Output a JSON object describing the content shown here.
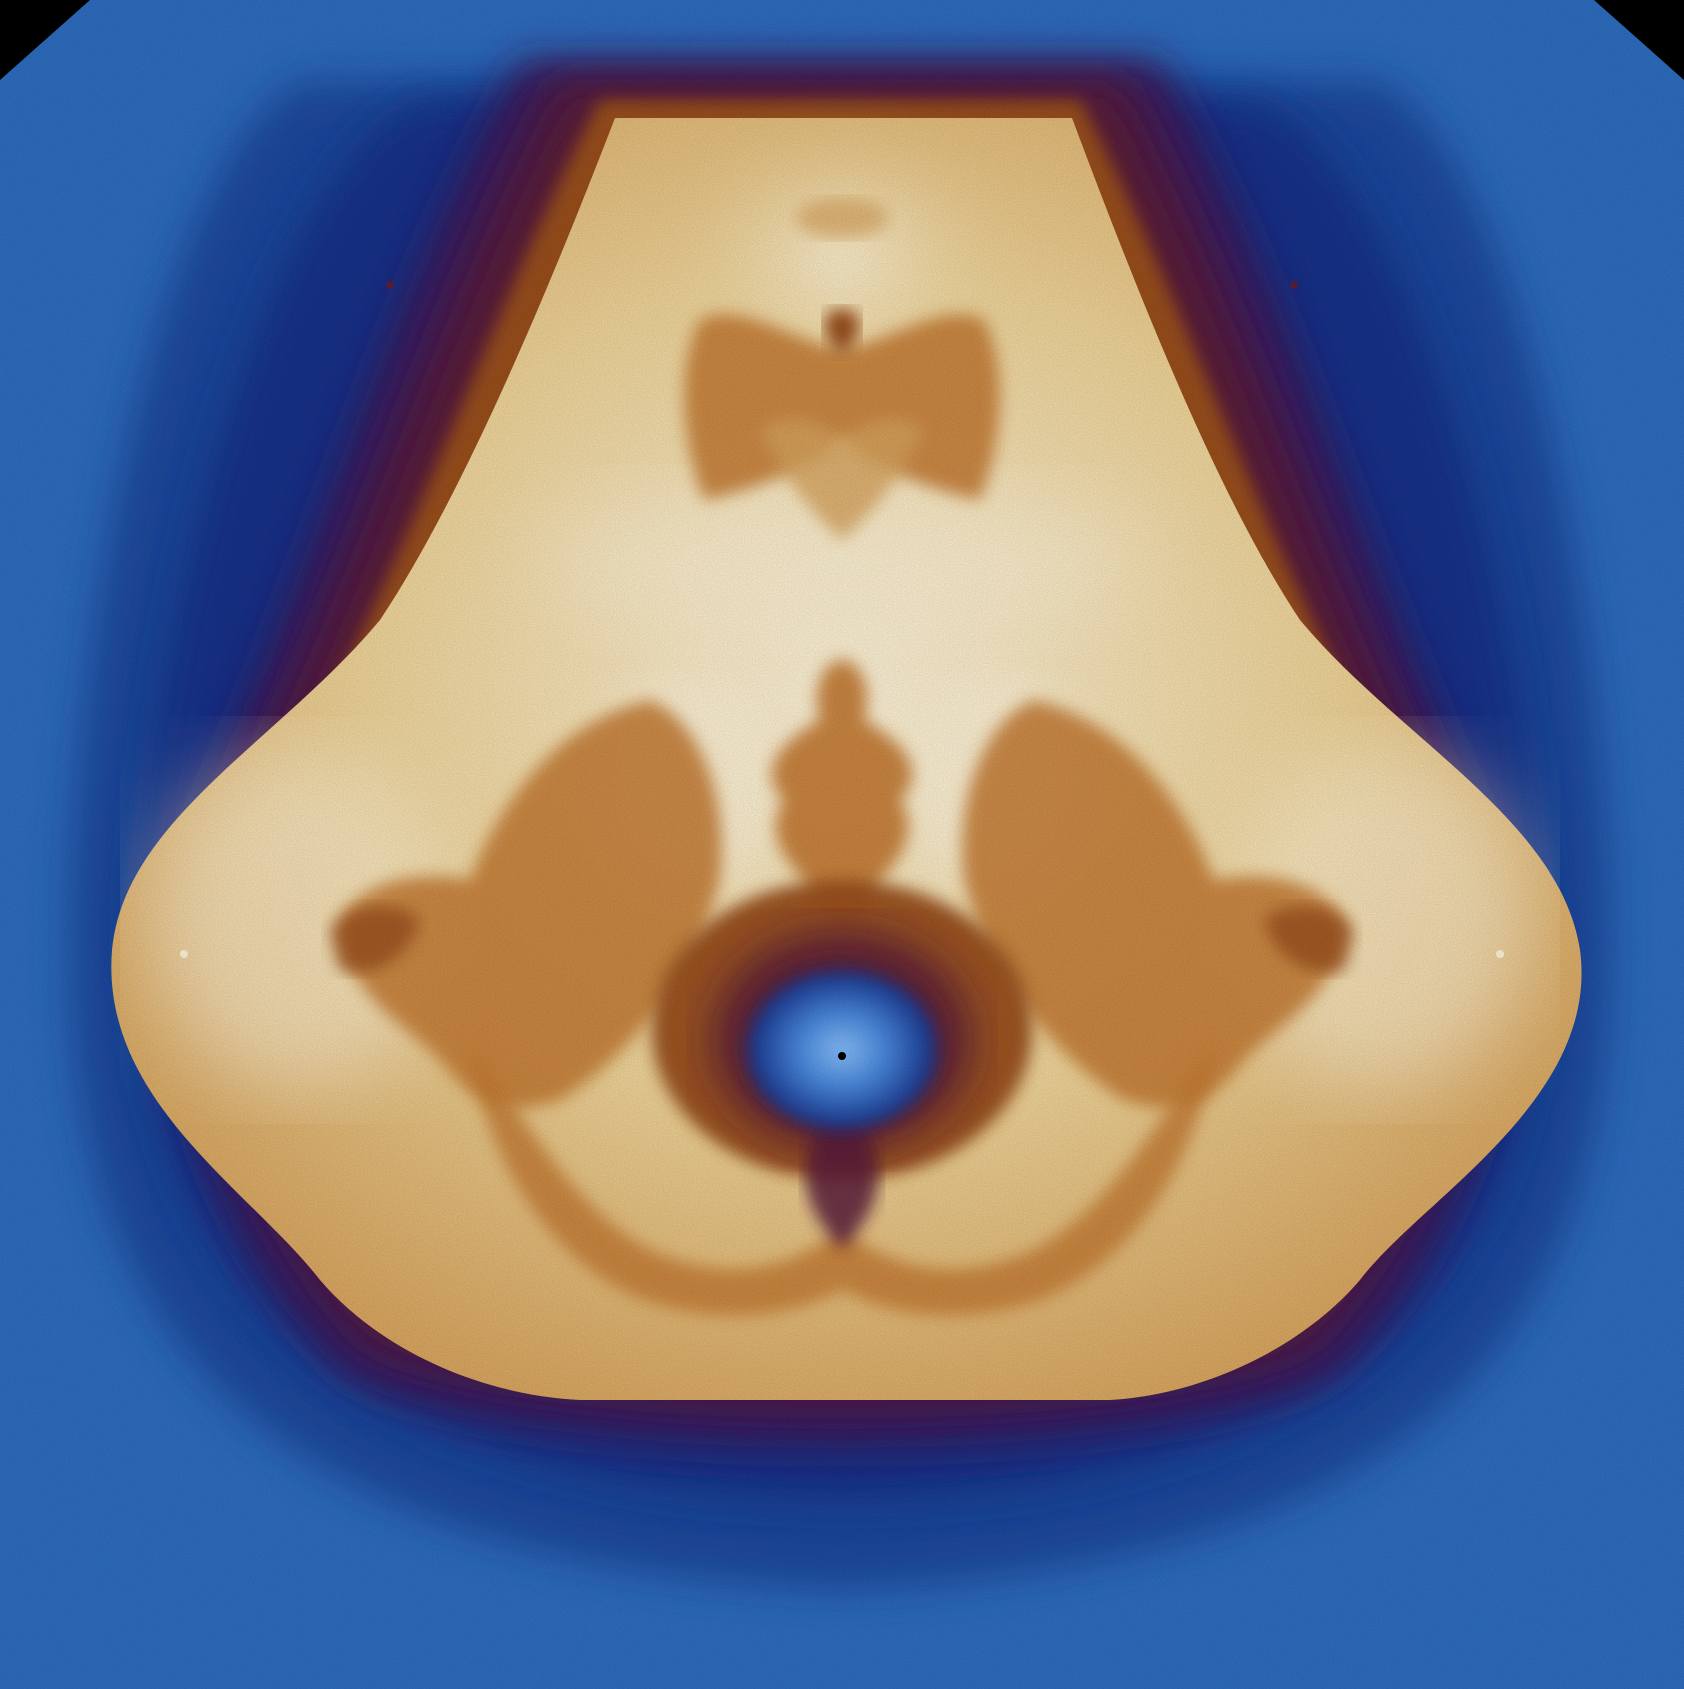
{
  "image": {
    "subject": "fractal-render",
    "palette": {
      "corner": "#000000",
      "outer_blue": "#2f6ec0",
      "mid_blue": "#1c4a9e",
      "deep_blue": "#16308a",
      "purple": "#3a1f5e",
      "maroon": "#5a1f3a",
      "rust": "#9a4f1c",
      "orange": "#c57a32",
      "tan": "#d9a55e",
      "cream": "#f0d59a",
      "highlight": "#fff4da",
      "core_blue": "#4a8be0",
      "core_light": "#8ec4ff"
    }
  }
}
